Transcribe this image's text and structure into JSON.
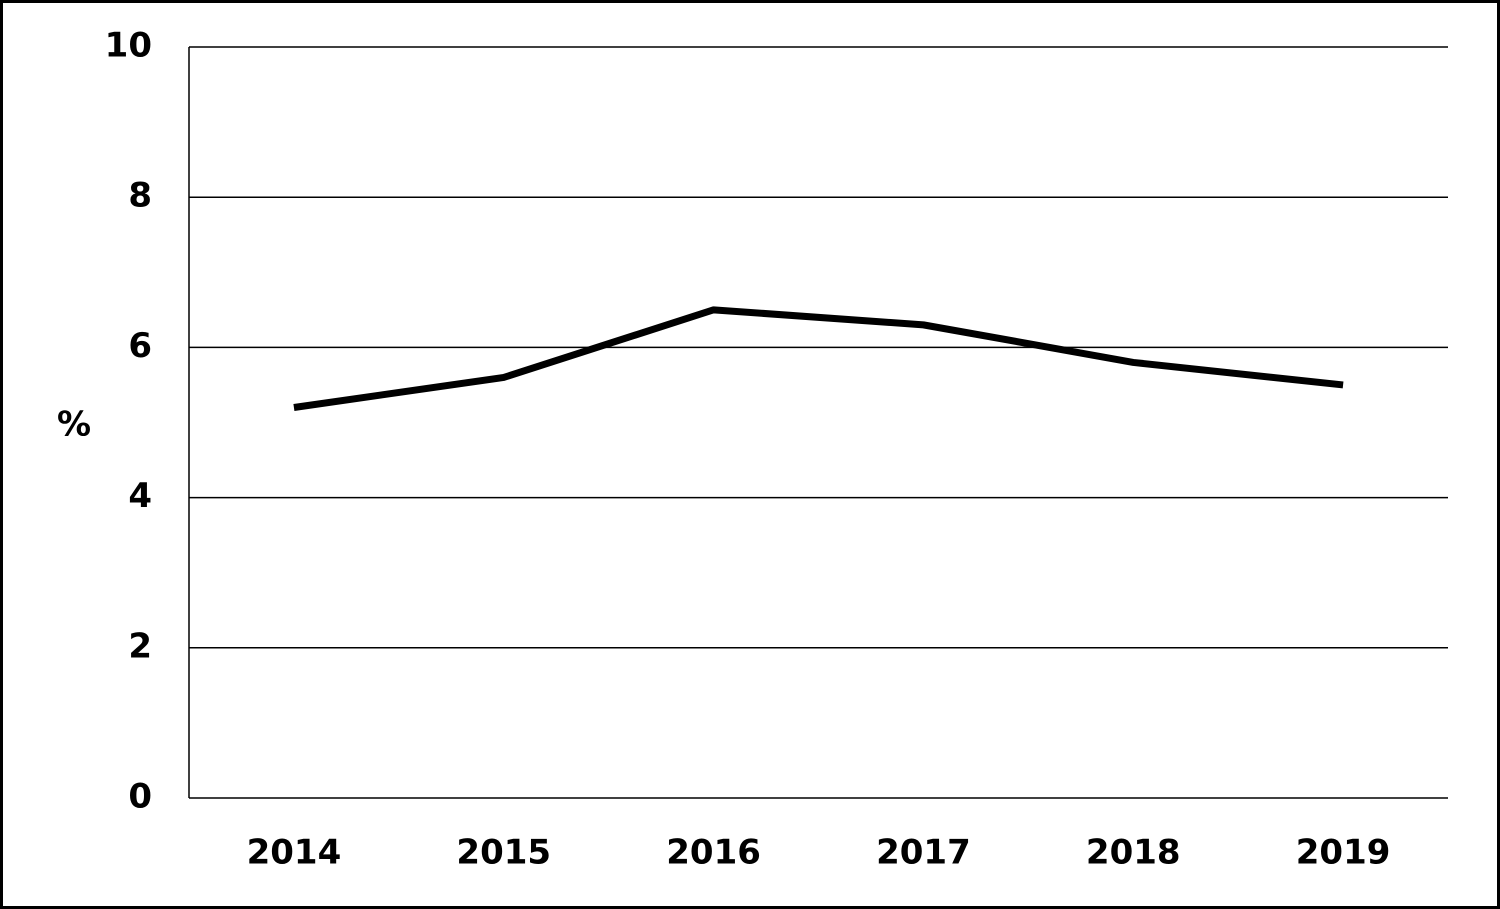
{
  "chart_data": {
    "type": "line",
    "y_label": "%",
    "categories": [
      "2014",
      "2015",
      "2016",
      "2017",
      "2018",
      "2019"
    ],
    "series": [
      {
        "color": "#000000",
        "values": [
          5.2,
          5.6,
          6.5,
          6.3,
          5.8,
          5.5
        ]
      }
    ],
    "ylim": [
      0,
      10
    ],
    "yticks": [
      0,
      2,
      4,
      6,
      8,
      10
    ],
    "grid": true
  }
}
